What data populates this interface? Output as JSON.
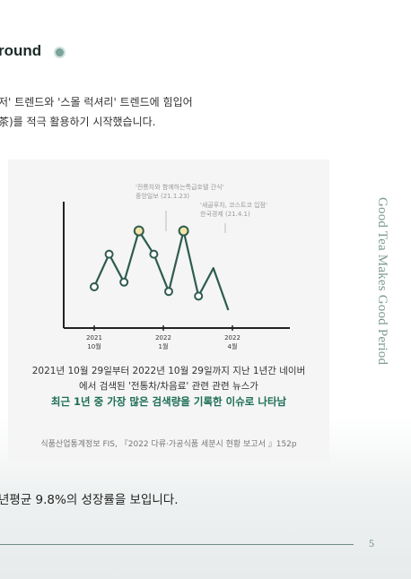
{
  "heading": "round",
  "paragraphs": [
    "저' 트렌드와 '스몰 럭셔리' 트렌드에 힘입어",
    "茶)를 적극 활용하기 시작했습니다."
  ],
  "figure": {
    "annotations": [
      {
        "line1": "'전통차와 함께하는특급호텔 간식'",
        "line2": "중앙일보 (21.1.23)"
      },
      {
        "line1": "'새골푸차, 코스트코 입점'",
        "line2": "한국경제 (21.4.1)"
      }
    ],
    "caption_line1": "2021년 10월 29일부터 2022년 10월 29일까지 지난 1년간 네이버",
    "caption_line2": "에서 검색된 '전통차/차음료' 관련 관련 뉴스가",
    "highlight": "최근 1년 중 가장 많은 검색량을 기록한 이슈로 나타남",
    "source": "식품산업통계정보 FIS, 『2022 다류·가공식품 세분시 현황 보고서 』152p"
  },
  "chart_data": {
    "type": "line",
    "title": "",
    "xlabel": "",
    "ylabel": "",
    "x_ticks": [
      {
        "year": "2021",
        "month": "10월"
      },
      {
        "year": "2022",
        "month": "1월"
      },
      {
        "year": "2022",
        "month": "4월"
      }
    ],
    "series": [
      {
        "x": [
          0,
          1,
          2,
          3,
          4,
          5,
          6,
          7,
          8,
          9
        ],
        "values": [
          5,
          12,
          6,
          17,
          12,
          4,
          17,
          3,
          9,
          0
        ],
        "highlighted_points": [
          3,
          6
        ]
      }
    ],
    "points_with_markers": [
      0,
      1,
      2,
      3,
      4,
      5,
      6,
      7
    ],
    "grid": false,
    "colors": {
      "line": "#2f5b51",
      "marker_fill": "#ffffff",
      "highlight_fill": "#f4e4a8"
    }
  },
  "side_title": "Good Tea Makes Good Period",
  "bottom_text": "년평균 9.8%의 성장률을 보입니다.",
  "page_number": "5"
}
